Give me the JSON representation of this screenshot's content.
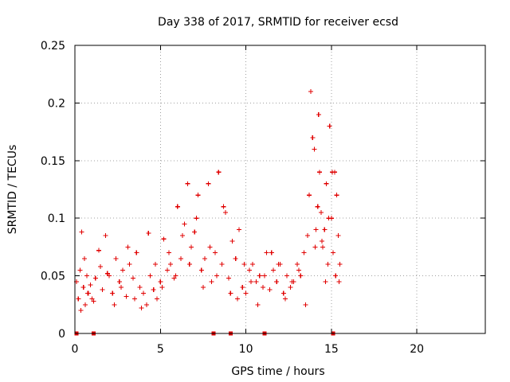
{
  "chart_data": {
    "type": "scatter",
    "title": "Day 338 of 2017, SRMTID for receiver ecsd",
    "xlabel": "GPS time / hours",
    "ylabel": "SRMTID / TECUs",
    "xlim": [
      0,
      24
    ],
    "ylim": [
      0,
      0.25
    ],
    "x_ticks": [
      0,
      5,
      10,
      15,
      20
    ],
    "x_tick_labels": [
      "0",
      "5",
      "10",
      "15",
      "20"
    ],
    "y_ticks": [
      0,
      0.05,
      0.1,
      0.15,
      0.2,
      0.25
    ],
    "y_tick_labels": [
      "0",
      "0.05",
      "0.1",
      "0.15",
      "0.2",
      "0.25"
    ],
    "grid": true,
    "marker": "+",
    "color": "#e00000",
    "baseline_markers_x": [
      0.1,
      1.1,
      8.1,
      9.1,
      11.1,
      15.1
    ],
    "series": [
      {
        "name": "SRMTID",
        "x": [
          0.1,
          0.2,
          0.3,
          0.4,
          0.5,
          0.6,
          0.7,
          0.8,
          0.9,
          1.0,
          1.2,
          1.4,
          1.6,
          1.8,
          2.0,
          2.2,
          2.4,
          2.6,
          2.8,
          3.0,
          3.2,
          3.4,
          3.6,
          3.8,
          4.0,
          4.2,
          4.4,
          4.6,
          4.8,
          5.0,
          5.2,
          5.4,
          5.6,
          5.8,
          6.0,
          6.2,
          6.4,
          6.6,
          6.8,
          7.0,
          7.2,
          7.4,
          7.6,
          7.8,
          8.0,
          8.2,
          8.4,
          8.6,
          8.8,
          9.0,
          9.2,
          9.4,
          9.6,
          9.8,
          10.0,
          10.2,
          10.4,
          10.6,
          10.8,
          11.0,
          11.2,
          11.4,
          11.6,
          11.8,
          12.0,
          12.2,
          12.4,
          12.6,
          12.8,
          13.0,
          13.2,
          13.4,
          13.6,
          13.7,
          13.8,
          13.9,
          14.0,
          14.1,
          14.2,
          14.3,
          14.4,
          14.5,
          14.6,
          14.7,
          14.8,
          14.9,
          15.0,
          15.1,
          15.2,
          15.3,
          15.4,
          15.5,
          0.35,
          0.55,
          0.75,
          1.1,
          1.5,
          1.9,
          2.3,
          2.7,
          3.1,
          3.5,
          3.9,
          4.3,
          4.7,
          5.1,
          5.5,
          5.9,
          6.3,
          6.7,
          7.1,
          7.5,
          7.9,
          8.3,
          8.7,
          9.1,
          9.5,
          9.9,
          10.3,
          10.7,
          11.1,
          11.5,
          11.9,
          12.3,
          12.7,
          13.1,
          13.5,
          14.05,
          14.25,
          14.45,
          14.65,
          14.85,
          15.05,
          15.25,
          15.45
        ],
        "y": [
          0.045,
          0.03,
          0.055,
          0.088,
          0.04,
          0.025,
          0.05,
          0.035,
          0.042,
          0.03,
          0.048,
          0.072,
          0.038,
          0.085,
          0.05,
          0.035,
          0.065,
          0.045,
          0.055,
          0.032,
          0.06,
          0.048,
          0.07,
          0.04,
          0.035,
          0.025,
          0.05,
          0.038,
          0.03,
          0.045,
          0.082,
          0.055,
          0.06,
          0.048,
          0.11,
          0.065,
          0.095,
          0.13,
          0.075,
          0.088,
          0.12,
          0.055,
          0.065,
          0.13,
          0.045,
          0.07,
          0.14,
          0.06,
          0.105,
          0.048,
          0.08,
          0.065,
          0.09,
          0.04,
          0.035,
          0.055,
          0.06,
          0.045,
          0.05,
          0.04,
          0.07,
          0.038,
          0.055,
          0.045,
          0.06,
          0.035,
          0.05,
          0.04,
          0.045,
          0.06,
          0.05,
          0.07,
          0.085,
          0.12,
          0.21,
          0.17,
          0.16,
          0.09,
          0.11,
          0.14,
          0.105,
          0.075,
          0.09,
          0.13,
          0.06,
          0.18,
          0.1,
          0.07,
          0.14,
          0.12,
          0.085,
          0.06,
          0.02,
          0.065,
          0.035,
          0.028,
          0.058,
          0.052,
          0.025,
          0.04,
          0.075,
          0.03,
          0.022,
          0.087,
          0.06,
          0.04,
          0.07,
          0.05,
          0.085,
          0.06,
          0.1,
          0.04,
          0.075,
          0.05,
          0.11,
          0.035,
          0.03,
          0.06,
          0.045,
          0.025,
          0.05,
          0.07,
          0.06,
          0.03,
          0.045,
          0.055,
          0.025,
          0.075,
          0.19,
          0.08,
          0.045,
          0.1,
          0.14,
          0.05,
          0.045
        ]
      }
    ]
  }
}
